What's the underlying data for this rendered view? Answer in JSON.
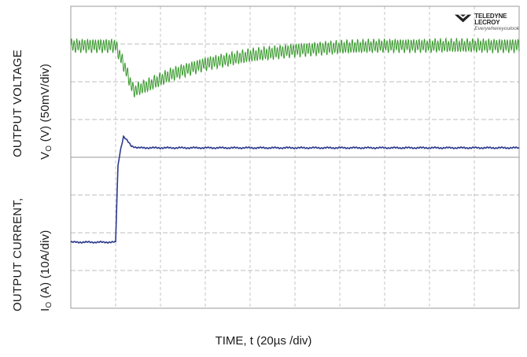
{
  "chart_data": {
    "type": "line",
    "title": "",
    "xlabel": "TIME, t (20µs /div)",
    "grid": true,
    "x_divisions": 10,
    "panels": [
      {
        "name": "output_voltage",
        "ylabel_main": "OUTPUT VOLTAGE",
        "ylabel_line2_prefix": "V",
        "ylabel_line2_sub": "O",
        "ylabel_line2_suffix": " (V) (50mV/div)",
        "y_divisions": 4,
        "color": "#3a9a2e",
        "ripple_mV": 8,
        "series": {
          "x_us": [
            0,
            20,
            24,
            28,
            35,
            45,
            60,
            80,
            100,
            120,
            140,
            160,
            180,
            200
          ],
          "y_mV": [
            0,
            0,
            -28,
            -60,
            -52,
            -38,
            -24,
            -13,
            -6,
            -2,
            0,
            0,
            0,
            0
          ]
        }
      },
      {
        "name": "output_current",
        "ylabel_main": "OUTPUT CURRENT,",
        "ylabel_line2_prefix": "I",
        "ylabel_line2_sub": "O",
        "ylabel_line2_suffix": " (A)  (10A/div)",
        "y_divisions": 4,
        "color": "#2c3a8c",
        "series": {
          "x_us": [
            0,
            20,
            20.5,
            21,
            22,
            23.5,
            25,
            27,
            30,
            200
          ],
          "y_A": [
            0,
            0,
            10,
            20,
            24,
            28,
            27,
            25.5,
            25,
            25
          ]
        }
      }
    ]
  },
  "logo": {
    "name": "TELEDYNE LECROY",
    "tagline": "Everywhereyoulook"
  }
}
